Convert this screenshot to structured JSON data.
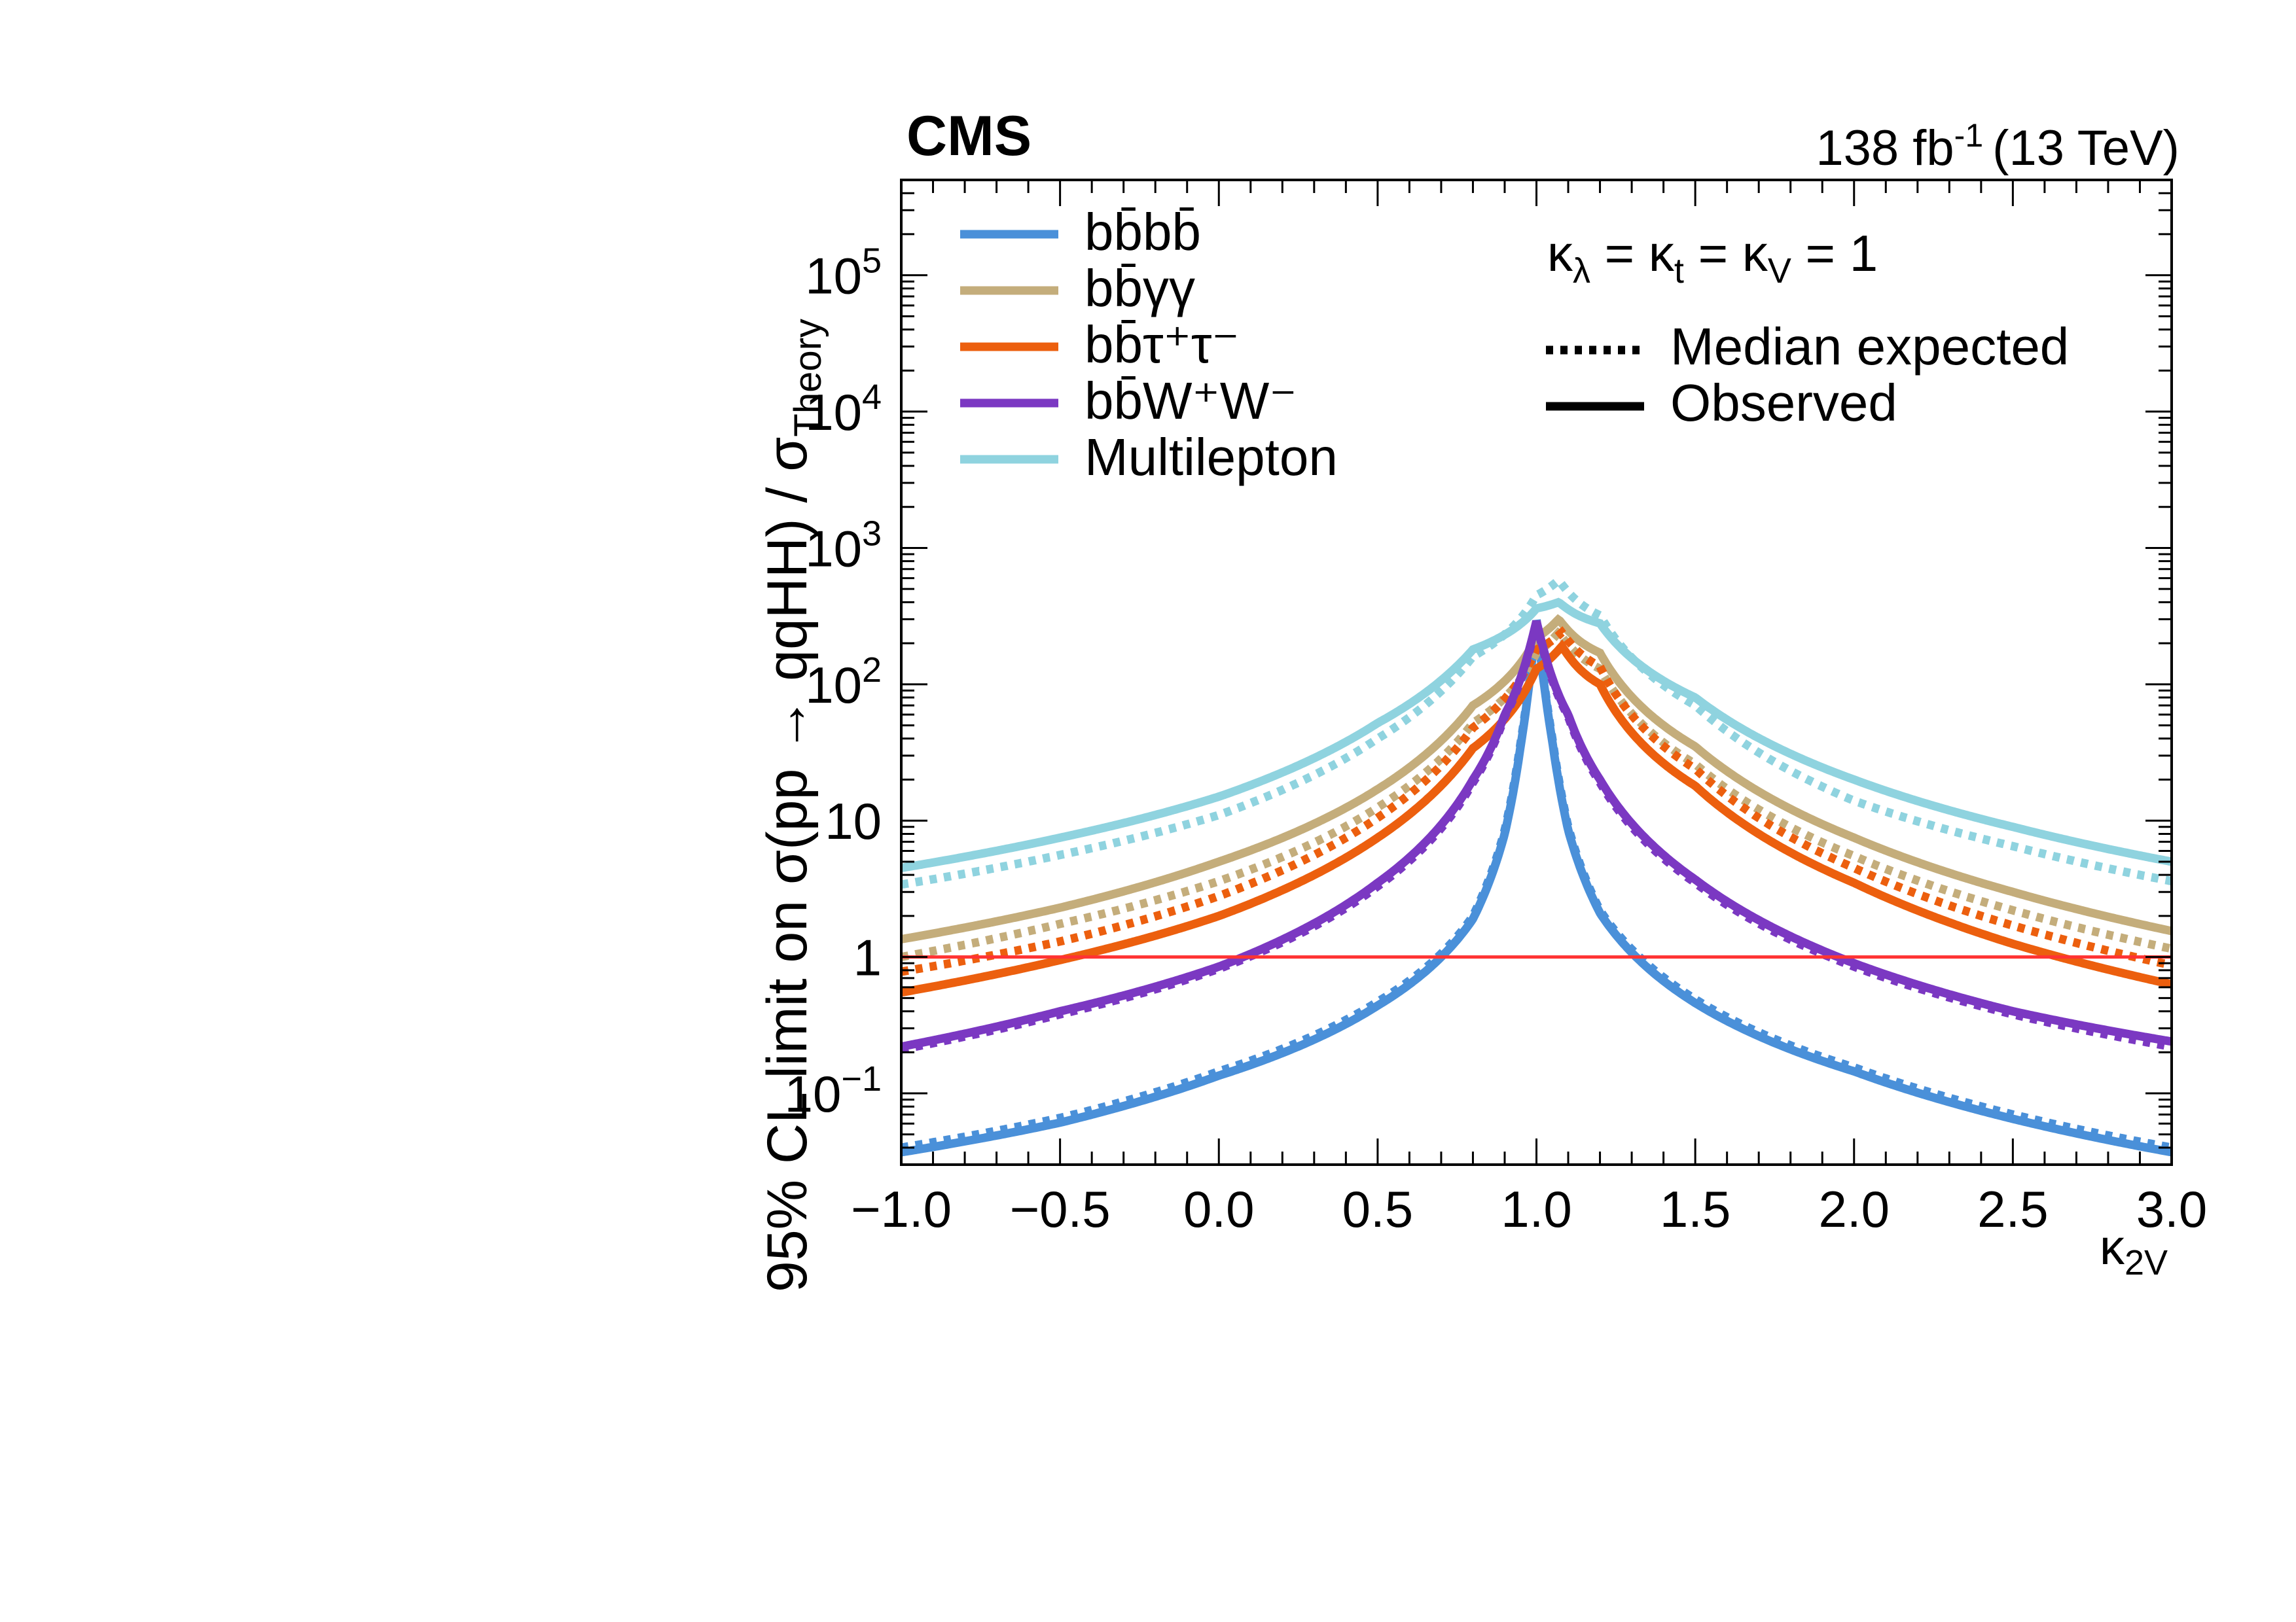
{
  "chart_data": {
    "type": "line",
    "title": "CMS",
    "luminosity_label": "138 fb",
    "luminosity_exp": "-1",
    "energy_label": "(13 TeV)",
    "xlabel": "κ",
    "xlabel_sub": "2V",
    "ylabel": "95% CL limit on σ(pp → qqHH) / σ",
    "ylabel_sub": "Theory",
    "xlim": [
      -1.0,
      3.0
    ],
    "ylim": [
      0.03,
      500000
    ],
    "yscale": "log",
    "x_ticks": [
      "−1.0",
      "−0.5",
      "0.0",
      "0.5",
      "1.0",
      "1.5",
      "2.0",
      "2.5",
      "3.0"
    ],
    "y_ticks": [
      {
        "value": 0.1,
        "base": "10",
        "exp": "−1"
      },
      {
        "value": 1,
        "base": "1",
        "exp": ""
      },
      {
        "value": 10,
        "base": "10",
        "exp": ""
      },
      {
        "value": 100,
        "base": "10",
        "exp": "2"
      },
      {
        "value": 1000,
        "base": "10",
        "exp": "3"
      },
      {
        "value": 10000,
        "base": "10",
        "exp": "4"
      },
      {
        "value": 100000,
        "base": "10",
        "exp": "5"
      }
    ],
    "annotation": {
      "base": "κ",
      "parts": [
        {
          "sub": "λ",
          "sep": " = κ"
        },
        {
          "sub": "t",
          "sep": " = κ"
        },
        {
          "sub": "V",
          "sep": " = 1"
        }
      ]
    },
    "style_legend": [
      {
        "label": "Median expected",
        "style": "dotted"
      },
      {
        "label": "Observed",
        "style": "solid"
      }
    ],
    "reference_line": {
      "y": 1,
      "color": "#ff3333"
    },
    "series": [
      {
        "name": "bb̄bb̄",
        "color": "#4a90d9",
        "center": 1.0,
        "x": [
          -1.0,
          -0.5,
          0.0,
          0.5,
          0.8,
          0.9,
          0.95,
          1.0,
          1.05,
          1.1,
          1.2,
          1.5,
          2.0,
          2.5,
          3.0
        ],
        "observed": [
          0.037,
          0.061,
          0.135,
          0.44,
          1.9,
          8.0,
          35,
          290,
          38,
          8.5,
          2.1,
          0.46,
          0.145,
          0.065,
          0.037
        ],
        "expected": [
          0.04,
          0.066,
          0.145,
          0.47,
          2.0,
          8.5,
          37,
          300,
          40,
          9.0,
          2.2,
          0.49,
          0.155,
          0.07,
          0.04
        ]
      },
      {
        "name": "bb̄γγ",
        "color": "#c4ad7b",
        "center": 1.07,
        "x": [
          -1.0,
          -0.5,
          0.0,
          0.5,
          0.8,
          1.0,
          1.07,
          1.2,
          1.5,
          2.0,
          2.5,
          3.0
        ],
        "observed": [
          1.35,
          2.3,
          5.0,
          17,
          70,
          220,
          300,
          170,
          35,
          7.5,
          3.0,
          1.55
        ],
        "expected": [
          1.0,
          1.75,
          3.6,
          12.5,
          52,
          170,
          240,
          130,
          26,
          5.5,
          2.2,
          1.15
        ]
      },
      {
        "name": "bb̄τ⁺τ⁻",
        "color": "#ec5f0e",
        "center": 1.08,
        "x": [
          -1.0,
          -0.5,
          0.0,
          0.5,
          0.8,
          1.0,
          1.08,
          1.2,
          1.5,
          2.0,
          2.5,
          3.0
        ],
        "observed": [
          0.55,
          0.95,
          2.0,
          7.5,
          34,
          130,
          190,
          100,
          18,
          3.5,
          1.25,
          0.63
        ],
        "expected": [
          0.78,
          1.3,
          2.8,
          10.5,
          48,
          180,
          240,
          135,
          24,
          4.5,
          1.7,
          0.87
        ]
      },
      {
        "name": "bb̄W⁺W⁻",
        "color": "#7b38c2",
        "center": 1.0,
        "x": [
          -1.0,
          -0.5,
          0.0,
          0.5,
          0.8,
          0.9,
          1.0,
          1.1,
          1.2,
          1.5,
          2.0,
          2.5,
          3.0
        ],
        "observed": [
          0.22,
          0.4,
          0.85,
          3.5,
          20,
          60,
          290,
          60,
          20,
          3.7,
          0.9,
          0.4,
          0.24
        ],
        "expected": [
          0.21,
          0.38,
          0.82,
          3.3,
          19,
          58,
          280,
          58,
          19,
          3.5,
          0.85,
          0.38,
          0.22
        ]
      },
      {
        "name": "Multilepton",
        "color": "#8fd3df",
        "center": 1.07,
        "x": [
          -1.0,
          -0.5,
          0.0,
          0.5,
          0.8,
          1.0,
          1.07,
          1.2,
          1.5,
          2.0,
          2.5,
          3.0
        ],
        "observed": [
          4.5,
          7.5,
          15,
          52,
          180,
          360,
          400,
          280,
          80,
          20,
          9.0,
          5.0
        ],
        "expected": [
          3.4,
          5.6,
          11,
          40,
          160,
          450,
          580,
          320,
          70,
          14,
          6.5,
          3.6
        ]
      }
    ]
  }
}
